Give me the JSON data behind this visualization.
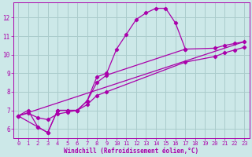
{
  "xlabel": "Windchill (Refroidissement éolien,°C)",
  "bg_color": "#cce8e8",
  "grid_color": "#aacccc",
  "line_color": "#aa00aa",
  "xlim": [
    -0.5,
    23.5
  ],
  "ylim": [
    5.5,
    12.8
  ],
  "xticks": [
    0,
    1,
    2,
    3,
    4,
    5,
    6,
    7,
    8,
    9,
    10,
    11,
    12,
    13,
    14,
    15,
    16,
    17,
    18,
    19,
    20,
    21,
    22,
    23
  ],
  "yticks": [
    6,
    7,
    8,
    9,
    10,
    11,
    12
  ],
  "curve1_x": [
    0,
    1,
    2,
    3,
    4,
    5,
    6,
    7,
    8,
    9,
    10,
    11,
    12,
    13,
    14,
    15,
    16,
    17
  ],
  "curve1_y": [
    6.7,
    7.0,
    6.1,
    5.8,
    7.0,
    7.0,
    7.0,
    7.5,
    8.8,
    9.0,
    10.3,
    11.1,
    11.9,
    12.25,
    12.5,
    12.5,
    11.7,
    10.3
  ],
  "curve2_x": [
    0,
    2,
    3,
    4,
    5,
    6,
    7,
    8,
    9,
    17,
    20,
    21,
    22,
    23
  ],
  "curve2_y": [
    6.7,
    6.1,
    5.8,
    7.0,
    7.0,
    7.0,
    7.5,
    8.5,
    8.9,
    10.3,
    10.35,
    10.5,
    10.6,
    10.7
  ],
  "curve3_x": [
    0,
    23
  ],
  "curve3_y": [
    6.7,
    10.7
  ],
  "curve4_x": [
    0,
    1,
    2,
    3,
    4,
    5,
    6,
    7,
    8,
    9,
    17,
    20,
    21,
    22,
    23
  ],
  "curve4_y": [
    6.7,
    6.85,
    6.6,
    6.5,
    6.8,
    6.9,
    7.0,
    7.3,
    7.8,
    8.0,
    9.6,
    9.9,
    10.1,
    10.25,
    10.4
  ]
}
